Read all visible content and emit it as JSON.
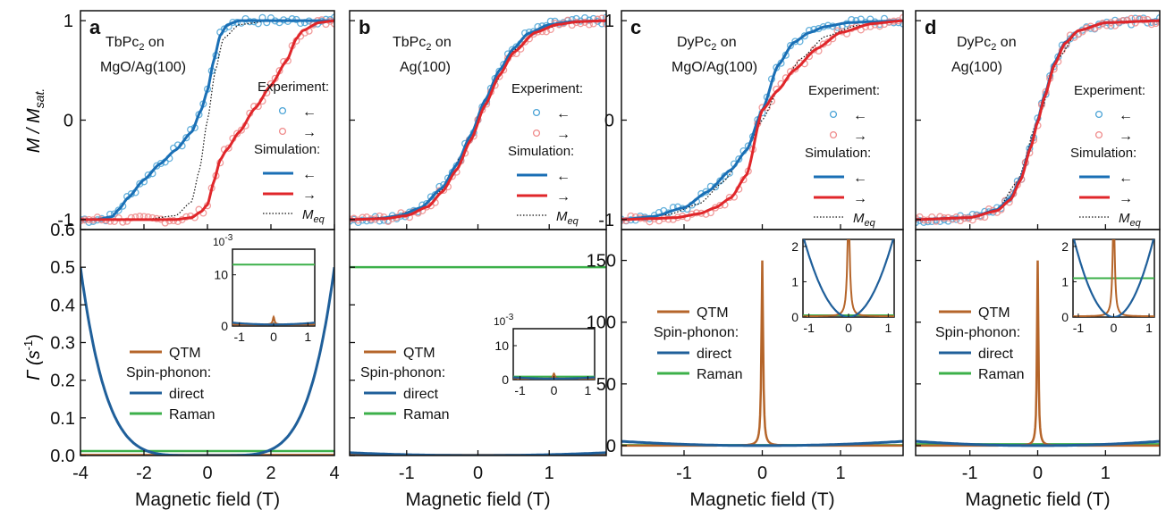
{
  "figure": {
    "ylabel_top": "M / M",
    "ylabel_top_sub": "sat.",
    "ylabel_bottom": "Γ (s",
    "ylabel_bottom_sup": "-1",
    "ylabel_bottom_end": ")",
    "xlabel": "Magnetic field (T)"
  },
  "colors": {
    "blue": "#1a6fb5",
    "red": "#e0262a",
    "exp_blue": "#4aa3d6",
    "exp_red": "#ef8a8a",
    "qtm": "#b5652a",
    "direct": "#1f5f9a",
    "raman": "#3cb04a",
    "axis": "#111111"
  },
  "chart_data": [
    {
      "panel": "a",
      "type": "line",
      "sample": [
        "TbPc",
        "2",
        " on",
        "MgO/Ag(100)"
      ],
      "xlim": [
        -4,
        4
      ],
      "xticks": [
        -4,
        -2,
        0,
        2,
        4
      ],
      "top": {
        "ylim": [
          -1.1,
          1.1
        ],
        "yticks": [
          -1,
          0,
          1
        ],
        "legend": {
          "experiment": "Experiment:",
          "simulation": "Simulation:",
          "left": "←",
          "right": "→",
          "meq": "M",
          "meq_sub": "eq"
        },
        "series": [
          {
            "name": "←",
            "kind": "simulation",
            "color": "blue",
            "x": [
              -4,
              -3.5,
              -3.0,
              -2.8,
              -2.5,
              -2.0,
              -1.5,
              -1.0,
              -0.5,
              -0.2,
              0,
              0.2,
              0.4,
              0.6,
              0.8,
              1.0,
              1.5,
              2.0,
              3.0,
              4.0
            ],
            "y": [
              -1,
              -1,
              -0.97,
              -0.9,
              -0.78,
              -0.6,
              -0.44,
              -0.3,
              -0.12,
              0.1,
              0.3,
              0.6,
              0.85,
              0.95,
              0.98,
              1.0,
              1.0,
              1.0,
              1.0,
              1.0
            ]
          },
          {
            "name": "→",
            "kind": "simulation",
            "color": "red",
            "x": [
              -4,
              -3,
              -2,
              -1,
              -0.5,
              -0.2,
              0,
              0.2,
              0.4,
              0.6,
              1.0,
              1.5,
              2.0,
              2.5,
              2.8,
              3.0,
              3.5,
              4.0
            ],
            "y": [
              -1,
              -1,
              -1,
              -1,
              -0.98,
              -0.92,
              -0.85,
              -0.62,
              -0.4,
              -0.3,
              -0.12,
              0.12,
              0.35,
              0.6,
              0.82,
              0.9,
              0.98,
              1.0
            ]
          },
          {
            "name": "M_eq",
            "kind": "equilibrium",
            "x": [
              -4,
              -2,
              -1,
              -0.5,
              -0.25,
              0,
              0.25,
              0.5,
              1,
              2,
              4
            ],
            "y": [
              -1,
              -1,
              -0.96,
              -0.82,
              -0.5,
              0,
              0.5,
              0.82,
              0.96,
              1,
              1
            ]
          }
        ]
      },
      "bottom": {
        "ylim": [
          0,
          0.6
        ],
        "yticks": [
          0.0,
          0.1,
          0.2,
          0.3,
          0.4,
          0.5,
          0.6
        ],
        "ytick_labels": [
          "0.0",
          "0.1",
          "0.2",
          "0.3",
          "0.4",
          "0.5",
          "0.6"
        ],
        "qtm": 0.0015,
        "raman": 0.012,
        "direct": {
          "amplitude": 0.5,
          "power": 5
        },
        "legend": {
          "qtm": "QTM",
          "spin_phonon": "Spin-phonon:",
          "direct": "direct",
          "raman": "Raman"
        },
        "inset": {
          "xlim": [
            -1.2,
            1.2
          ],
          "ylim": [
            0,
            15
          ],
          "yticks": [
            0,
            10
          ],
          "xticks": [
            -1,
            0,
            1
          ],
          "exponent": "10",
          "exponent_sup": "-3",
          "raman": 12,
          "direct_amp": 0.35,
          "qtm_peak": 1.5
        }
      }
    },
    {
      "panel": "b",
      "type": "line",
      "sample": [
        "TbPc",
        "2",
        " on",
        "Ag(100)"
      ],
      "xlim": [
        -1.8,
        1.8
      ],
      "xticks": [
        -1,
        0,
        1
      ],
      "top": {
        "ylim": [
          -1.1,
          1.1
        ],
        "legend": {
          "experiment": "Experiment:",
          "simulation": "Simulation:",
          "left": "←",
          "right": "→",
          "meq": "M",
          "meq_sub": "eq"
        },
        "series": [
          {
            "name": "←",
            "kind": "simulation",
            "color": "blue",
            "x": [
              -1.8,
              -1.4,
              -1.1,
              -0.8,
              -0.5,
              -0.3,
              -0.1,
              0.1,
              0.3,
              0.5,
              0.7,
              1.0,
              1.3,
              1.8
            ],
            "y": [
              -1,
              -0.99,
              -0.96,
              -0.88,
              -0.68,
              -0.45,
              -0.15,
              0.2,
              0.5,
              0.72,
              0.87,
              0.96,
              0.99,
              1.0
            ]
          },
          {
            "name": "→",
            "kind": "simulation",
            "color": "red",
            "x": [
              -1.8,
              -1.3,
              -1.0,
              -0.7,
              -0.5,
              -0.3,
              -0.1,
              0.1,
              0.3,
              0.5,
              0.8,
              1.1,
              1.4,
              1.8
            ],
            "y": [
              -1,
              -0.99,
              -0.96,
              -0.87,
              -0.72,
              -0.5,
              -0.2,
              0.15,
              0.45,
              0.68,
              0.88,
              0.96,
              0.99,
              1.0
            ]
          },
          {
            "name": "M_eq",
            "kind": "equilibrium",
            "x": [
              -1.8,
              -1.2,
              -0.8,
              -0.5,
              -0.2,
              0,
              0.2,
              0.5,
              0.8,
              1.2,
              1.8
            ],
            "y": [
              -1,
              -0.97,
              -0.88,
              -0.7,
              -0.32,
              0,
              0.32,
              0.7,
              0.88,
              0.97,
              1
            ]
          }
        ]
      },
      "bottom": {
        "ylim": [
          0,
          0.6
        ],
        "qtm": 0.0015,
        "raman": 0.5,
        "direct": {
          "amplitude": 0.0075,
          "power": 2
        },
        "legend": {
          "qtm": "QTM",
          "spin_phonon": "Spin-phonon:",
          "direct": "direct",
          "raman": "Raman"
        },
        "inset": {
          "xlim": [
            -1.2,
            1.2
          ],
          "ylim": [
            0,
            15
          ],
          "yticks": [
            0,
            10
          ],
          "xticks": [
            -1,
            0,
            1
          ],
          "exponent": "10",
          "exponent_sup": "-3",
          "raman": 0.9,
          "direct_amp": 0.35,
          "qtm_peak": 1.5
        }
      }
    },
    {
      "panel": "c",
      "type": "line",
      "sample": [
        "DyPc",
        "2",
        " on",
        "MgO/Ag(100)"
      ],
      "xlim": [
        -1.8,
        1.8
      ],
      "xticks": [
        -1,
        0,
        1
      ],
      "top": {
        "ylim": [
          -1.1,
          1.1
        ],
        "yticks": [
          -1,
          0,
          1
        ],
        "legend": {
          "experiment": "Experiment:",
          "simulation": "Simulation:",
          "left": "←",
          "right": "→",
          "meq": "M",
          "meq_sub": "eq"
        },
        "series": [
          {
            "name": "←",
            "kind": "simulation",
            "color": "blue",
            "x": [
              -1.8,
              -1.4,
              -1.0,
              -0.7,
              -0.4,
              -0.2,
              0,
              0.2,
              0.4,
              0.6,
              0.8,
              1.1,
              1.4,
              1.8
            ],
            "y": [
              -1,
              -0.97,
              -0.88,
              -0.72,
              -0.5,
              -0.3,
              0.1,
              0.55,
              0.78,
              0.88,
              0.94,
              0.98,
              0.99,
              1.0
            ]
          },
          {
            "name": "→",
            "kind": "simulation",
            "color": "red",
            "x": [
              -1.8,
              -1.4,
              -1.1,
              -0.8,
              -0.6,
              -0.4,
              -0.2,
              0,
              0.2,
              0.4,
              0.7,
              1.0,
              1.4,
              1.8
            ],
            "y": [
              -1,
              -0.99,
              -0.98,
              -0.94,
              -0.88,
              -0.78,
              -0.55,
              0.1,
              0.3,
              0.5,
              0.72,
              0.88,
              0.97,
              1.0
            ]
          },
          {
            "name": "M_eq",
            "kind": "equilibrium",
            "x": [
              -1.8,
              -1.2,
              -0.8,
              -0.5,
              -0.2,
              0,
              0.2,
              0.5,
              0.8,
              1.2,
              1.8
            ],
            "y": [
              -1,
              -0.95,
              -0.84,
              -0.62,
              -0.3,
              0,
              0.3,
              0.62,
              0.84,
              0.95,
              1
            ]
          }
        ]
      },
      "bottom": {
        "ylim": [
          -8,
          175
        ],
        "yticks": [
          0,
          50,
          100,
          150
        ],
        "ytick_labels": [
          "0",
          "50",
          "100",
          "150"
        ],
        "qtm_peak": 150,
        "qtm_width": 0.012,
        "raman": 0.4,
        "direct": {
          "amplitude": 3.5,
          "power": 2
        },
        "legend": {
          "qtm": "QTM",
          "spin_phonon": "Spin-phonon:",
          "direct": "direct",
          "raman": "Raman"
        },
        "inset": {
          "xlim": [
            -1.15,
            1.15
          ],
          "ylim": [
            0,
            2.2
          ],
          "yticks": [
            0,
            1,
            2
          ],
          "xticks": [
            -1,
            0,
            1
          ],
          "raman": 0.05,
          "direct_amp": 2.2,
          "qtm_peak": 150,
          "qtm_width": 0.012
        }
      }
    },
    {
      "panel": "d",
      "type": "line",
      "sample": [
        "DyPc",
        "2",
        " on",
        "Ag(100)"
      ],
      "xlim": [
        -1.8,
        1.8
      ],
      "xticks": [
        -1,
        0,
        1
      ],
      "top": {
        "ylim": [
          -1.1,
          1.1
        ],
        "legend": {
          "experiment": "Experiment:",
          "simulation": "Simulation:",
          "left": "←",
          "right": "→",
          "meq": "M",
          "meq_sub": "eq"
        },
        "series": [
          {
            "name": "←",
            "kind": "simulation",
            "color": "blue",
            "x": [
              -1.8,
              -1.0,
              -0.6,
              -0.4,
              -0.25,
              -0.1,
              0,
              0.1,
              0.25,
              0.4,
              0.6,
              1.0,
              1.8
            ],
            "y": [
              -1,
              -0.98,
              -0.9,
              -0.78,
              -0.58,
              -0.25,
              0,
              0.25,
              0.58,
              0.78,
              0.9,
              0.98,
              1.0
            ]
          },
          {
            "name": "→",
            "kind": "simulation",
            "color": "red",
            "x": [
              -1.8,
              -1.0,
              -0.6,
              -0.4,
              -0.25,
              -0.1,
              0,
              0.1,
              0.25,
              0.4,
              0.6,
              1.0,
              1.8
            ],
            "y": [
              -1,
              -0.98,
              -0.91,
              -0.8,
              -0.6,
              -0.27,
              -0.02,
              0.23,
              0.56,
              0.77,
              0.9,
              0.98,
              1.0
            ]
          },
          {
            "name": "M_eq",
            "kind": "equilibrium",
            "x": [
              -1.8,
              -1.0,
              -0.6,
              -0.3,
              0,
              0.3,
              0.6,
              1.0,
              1.8
            ],
            "y": [
              -1,
              -0.98,
              -0.9,
              -0.62,
              0,
              0.62,
              0.9,
              0.98,
              1
            ]
          }
        ]
      },
      "bottom": {
        "ylim": [
          -8,
          175
        ],
        "qtm_peak": 150,
        "qtm_width": 0.012,
        "raman": 1.1,
        "direct": {
          "amplitude": 3.5,
          "power": 2
        },
        "legend": {
          "qtm": "QTM",
          "spin_phonon": "Spin-phonon:",
          "direct": "direct",
          "raman": "Raman"
        },
        "inset": {
          "xlim": [
            -1.15,
            1.15
          ],
          "ylim": [
            0,
            2.2
          ],
          "yticks": [
            0,
            1,
            2
          ],
          "xticks": [
            -1,
            0,
            1
          ],
          "raman": 1.1,
          "direct_amp": 2.2,
          "qtm_peak": 150,
          "qtm_width": 0.012
        }
      }
    }
  ]
}
